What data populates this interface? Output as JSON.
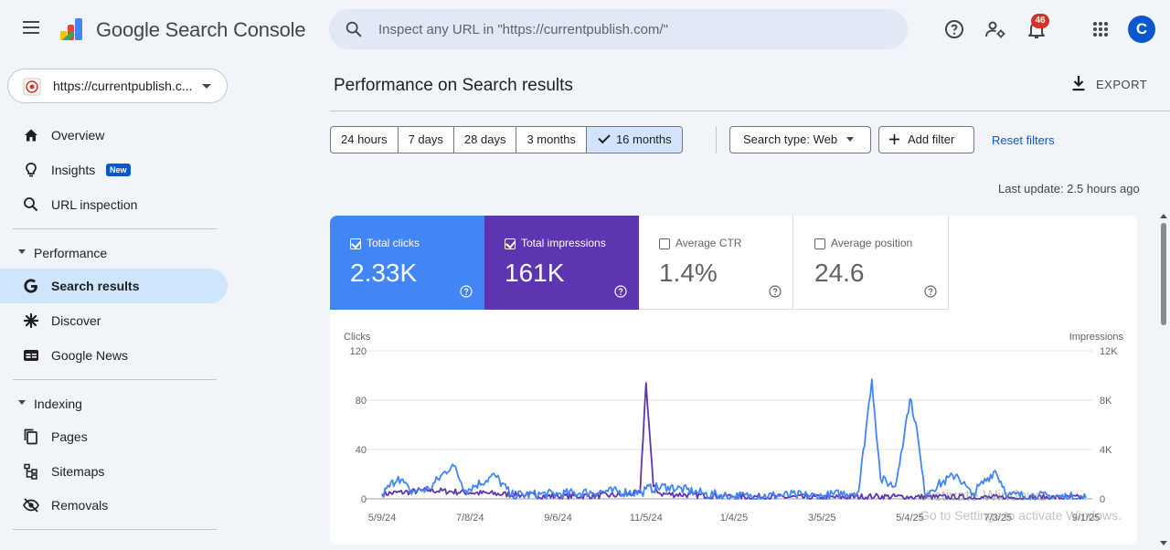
{
  "app": {
    "title": "Google Search Console",
    "search_placeholder": "Inspect any URL in \"https://currentpublish.com/\"",
    "notification_count": "46",
    "avatar_letter": "C"
  },
  "sidebar": {
    "property": "https://currentpublish.c...",
    "top_items": [
      {
        "label": "Overview",
        "icon": "home-icon"
      },
      {
        "label": "Insights",
        "icon": "lightbulb-icon",
        "badge": "New"
      },
      {
        "label": "URL inspection",
        "icon": "search-icon"
      }
    ],
    "performance": {
      "label": "Performance",
      "items": [
        {
          "label": "Search results",
          "icon": "google-g-icon",
          "active": true
        },
        {
          "label": "Discover",
          "icon": "asterisk-icon"
        },
        {
          "label": "Google News",
          "icon": "google-news-icon"
        }
      ]
    },
    "indexing": {
      "label": "Indexing",
      "items": [
        {
          "label": "Pages",
          "icon": "pages-icon"
        },
        {
          "label": "Sitemaps",
          "icon": "sitemap-icon"
        },
        {
          "label": "Removals",
          "icon": "removals-icon"
        }
      ]
    }
  },
  "main": {
    "title": "Performance on Search results",
    "export_label": "EXPORT",
    "date_ranges": [
      {
        "label": "24 hours",
        "selected": false
      },
      {
        "label": "7 days",
        "selected": false
      },
      {
        "label": "28 days",
        "selected": false
      },
      {
        "label": "3 months",
        "selected": false
      },
      {
        "label": "16 months",
        "selected": true
      }
    ],
    "search_type": "Search type: Web",
    "add_filter": "Add filter",
    "reset_filters": "Reset filters",
    "last_update": "Last update: 2.5 hours ago",
    "metrics": [
      {
        "label": "Total clicks",
        "value": "2.33K",
        "checked": true,
        "color": "#4285f4"
      },
      {
        "label": "Total impressions",
        "value": "161K",
        "checked": true,
        "color": "#5e35b1"
      },
      {
        "label": "Average CTR",
        "value": "1.4%",
        "checked": false
      },
      {
        "label": "Average position",
        "value": "24.6",
        "checked": false
      }
    ]
  },
  "watermark": {
    "line1": "Activate Windows",
    "line2": "Go to Settings to activate Windows."
  },
  "chart_data": {
    "type": "line",
    "ylabel_left": "Clicks",
    "ylabel_right": "Impressions",
    "y_left_ticks": [
      "120",
      "80",
      "40",
      "0"
    ],
    "y_right_ticks": [
      "12K",
      "8K",
      "4K",
      "0"
    ],
    "ylim_left": [
      0,
      120
    ],
    "ylim_right": [
      0,
      12000
    ],
    "x_tick_labels": [
      "5/9/24",
      "7/8/24",
      "9/6/24",
      "11/5/24",
      "1/4/25",
      "3/5/25",
      "5/4/25",
      "7/3/25",
      "9/1/25"
    ],
    "grid": true,
    "colors": {
      "clicks": "#4285f4",
      "impressions": "#5e35b1"
    },
    "series": [
      {
        "name": "Clicks",
        "axis": "left",
        "color": "#4285f4",
        "keypoints": [
          [
            "5/9/24",
            3
          ],
          [
            "5/20/24",
            18
          ],
          [
            "5/28/24",
            6
          ],
          [
            "6/10/24",
            8
          ],
          [
            "6/26/24",
            28
          ],
          [
            "7/5/24",
            7
          ],
          [
            "7/25/24",
            19
          ],
          [
            "8/5/24",
            3
          ],
          [
            "9/6/24",
            4
          ],
          [
            "10/10/24",
            6
          ],
          [
            "11/2/24",
            5
          ],
          [
            "11/5/24",
            8
          ],
          [
            "11/20/24",
            10
          ],
          [
            "12/15/24",
            4
          ],
          [
            "1/4/25",
            2
          ],
          [
            "2/15/25",
            3
          ],
          [
            "3/5/25",
            2
          ],
          [
            "3/30/25",
            6
          ],
          [
            "4/8/25",
            97
          ],
          [
            "4/14/25",
            16
          ],
          [
            "4/24/25",
            10
          ],
          [
            "4/28/25",
            38
          ],
          [
            "5/4/25",
            81
          ],
          [
            "5/8/25",
            62
          ],
          [
            "5/14/25",
            5
          ],
          [
            "6/5/25",
            20
          ],
          [
            "6/15/25",
            3
          ],
          [
            "7/1/25",
            23
          ],
          [
            "7/10/25",
            3
          ],
          [
            "9/1/25",
            1
          ]
        ]
      },
      {
        "name": "Impressions",
        "axis": "right",
        "color": "#5e35b1",
        "keypoints": [
          [
            "5/9/24",
            400
          ],
          [
            "6/10/24",
            700
          ],
          [
            "7/8/24",
            500
          ],
          [
            "8/15/24",
            300
          ],
          [
            "9/6/24",
            200
          ],
          [
            "10/20/24",
            300
          ],
          [
            "11/1/24",
            500
          ],
          [
            "11/5/24",
            9400
          ],
          [
            "11/10/24",
            1000
          ],
          [
            "11/15/24",
            400
          ],
          [
            "1/4/25",
            200
          ],
          [
            "3/5/25",
            100
          ],
          [
            "4/10/25",
            200
          ],
          [
            "5/4/25",
            150
          ],
          [
            "7/3/25",
            100
          ],
          [
            "9/1/25",
            100
          ]
        ]
      }
    ]
  }
}
